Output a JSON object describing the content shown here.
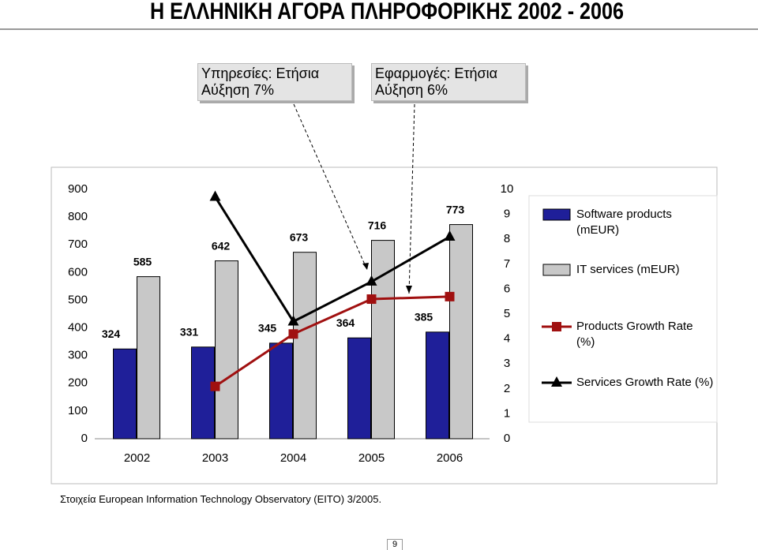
{
  "title": "Η ΕΛΛΗΝΙΚΗ ΑΓΟΡΑ ΠΛΗΡΟΦΟΡΙΚΗΣ 2002 - 2006",
  "annotations": [
    "Υπηρεσίες: Ετήσια Αύξηση 7%",
    "Εφαρμογές: Ετήσια Αύξηση 6%"
  ],
  "source": "Στοιχεία European Information Technology Observatory (EITO) 3/2005.",
  "page_number": "9",
  "chart_data": {
    "type": "bar",
    "categories": [
      "2002",
      "2003",
      "2004",
      "2005",
      "2006"
    ],
    "series": [
      {
        "name": "Software products (mEUR)",
        "color": "#1f1f99",
        "values": [
          324,
          331,
          345,
          364,
          385
        ]
      },
      {
        "name": "IT services (mEUR)",
        "color": "#c8c8c8",
        "values": [
          585,
          642,
          673,
          716,
          773
        ]
      },
      {
        "name": "Products Growth Rate (%)",
        "color": "#a01010",
        "type": "line",
        "marker": "square",
        "axis": "y2",
        "values": [
          null,
          2.1,
          4.2,
          5.6,
          5.7
        ]
      },
      {
        "name": "Services Growth Rate (%)",
        "color": "#000000",
        "type": "line",
        "marker": "triangle",
        "axis": "y2",
        "values": [
          null,
          9.7,
          4.7,
          6.3,
          8.1
        ]
      }
    ],
    "ylim": [
      0,
      900
    ],
    "yticks": [
      0,
      100,
      200,
      300,
      400,
      500,
      600,
      700,
      800,
      900
    ],
    "y2lim": [
      0,
      10
    ],
    "y2ticks": [
      0,
      1,
      2,
      3,
      4,
      5,
      6,
      7,
      8,
      9,
      10
    ]
  }
}
